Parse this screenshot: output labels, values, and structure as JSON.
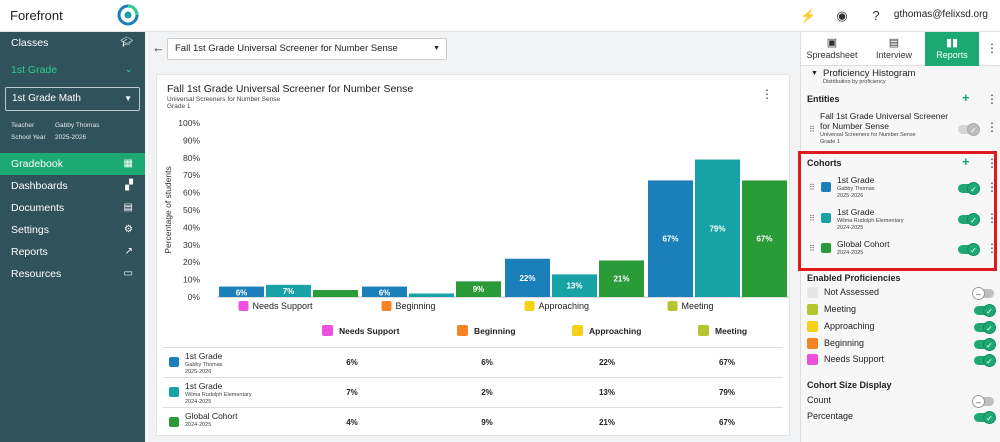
{
  "app": {
    "title": "Forefront",
    "user_email": "gthomas@felixsd.org"
  },
  "sidebar": {
    "classes_label": "Classes",
    "grade_label": "1st Grade",
    "class_select": "1st Grade Math",
    "teacher_label": "Teacher",
    "teacher_value": "Gabby Thomas",
    "year_label": "School Year",
    "year_value": "2025-2026",
    "nav": [
      "Gradebook",
      "Dashboards",
      "Documents",
      "Settings",
      "Reports",
      "Resources"
    ]
  },
  "main": {
    "assessment_select": "Fall 1st Grade Universal Screener for Number Sense",
    "card_title": "Fall 1st Grade Universal Screener for Number Sense",
    "card_subtitle": "Universal Screeners for Number Sense",
    "card_grade": "Grade 1"
  },
  "chart_data": {
    "type": "bar",
    "ylabel": "Percentage of students",
    "ylim": [
      0,
      100
    ],
    "yticks": [
      "0%",
      "10%",
      "20%",
      "30%",
      "40%",
      "50%",
      "60%",
      "70%",
      "80%",
      "90%",
      "100%"
    ],
    "categories": [
      "Needs Support",
      "Beginning",
      "Approaching",
      "Meeting"
    ],
    "category_colors": [
      "#ee4fdd",
      "#f68324",
      "#f4d21a",
      "#b3c630"
    ],
    "series": [
      {
        "name": "1st Grade",
        "color": "#1b7fba",
        "values": [
          6,
          6,
          22,
          67
        ],
        "labels": [
          "6%",
          "6%",
          "22%",
          "67%"
        ]
      },
      {
        "name": "1st Grade",
        "color": "#17a3a6",
        "values": [
          7,
          2,
          13,
          79
        ],
        "labels": [
          "7%",
          "",
          "13%",
          "79%"
        ]
      },
      {
        "name": "Global Cohort",
        "color": "#2b9a38",
        "values": [
          4,
          9,
          21,
          67
        ],
        "labels": [
          "",
          "9%",
          "21%",
          "67%"
        ]
      }
    ]
  },
  "table": {
    "headers": [
      "Needs Support",
      "Beginning",
      "Approaching",
      "Meeting"
    ],
    "rows": [
      {
        "name": "1st Grade",
        "sub1": "Gabby Thomas",
        "sub2": "2025-2026",
        "color": "#1b7fba",
        "values": [
          "6%",
          "6%",
          "22%",
          "67%"
        ]
      },
      {
        "name": "1st Grade",
        "sub1": "Wilma Rudolph Elementary",
        "sub2": "2024-2025",
        "color": "#17a3a6",
        "values": [
          "7%",
          "2%",
          "13%",
          "79%"
        ]
      },
      {
        "name": "Global Cohort",
        "sub1": "2024-2025",
        "sub2": "",
        "color": "#2b9a38",
        "values": [
          "4%",
          "9%",
          "21%",
          "67%"
        ]
      }
    ]
  },
  "right_panel": {
    "tabs": [
      "Spreadsheet",
      "Interview",
      "Reports"
    ],
    "viz_name": "Proficiency Histogram",
    "viz_sub": "Distribution by proficiency",
    "entities_title": "Entities",
    "entity_name_1": "Fall 1st Grade Universal Screener",
    "entity_name_2": "for Number Sense",
    "entity_sub1": "Universal Screeners for Number Sense",
    "entity_sub2": "Grade 1",
    "cohorts_title": "Cohorts",
    "cohorts": [
      {
        "name": "1st Grade",
        "sub1": "Gabby Thomas",
        "sub2": "2025-2026",
        "color": "#1b7fba"
      },
      {
        "name": "1st Grade",
        "sub1": "Wilma Rudolph Elementary",
        "sub2": "2024-2025",
        "color": "#17a3a6"
      },
      {
        "name": "Global Cohort",
        "sub1": "2024-2025",
        "sub2": "",
        "color": "#2b9a38"
      }
    ],
    "proficiencies_title": "Enabled Proficiencies",
    "proficiencies": [
      {
        "label": "Not Assessed",
        "color": "#e6e6e6",
        "on": false
      },
      {
        "label": "Meeting",
        "color": "#b3c630",
        "on": true
      },
      {
        "label": "Approaching",
        "color": "#f4d21a",
        "on": true
      },
      {
        "label": "Beginning",
        "color": "#f68324",
        "on": true
      },
      {
        "label": "Needs Support",
        "color": "#ee4fdd",
        "on": true
      }
    ],
    "size_title": "Cohort Size Display",
    "size_options": [
      {
        "label": "Count",
        "on": false
      },
      {
        "label": "Percentage",
        "on": true
      }
    ]
  }
}
